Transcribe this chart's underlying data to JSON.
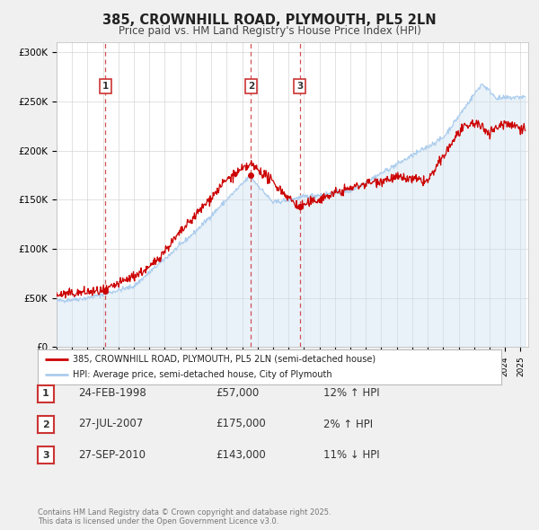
{
  "title": "385, CROWNHILL ROAD, PLYMOUTH, PL5 2LN",
  "subtitle": "Price paid vs. HM Land Registry's House Price Index (HPI)",
  "hpi_label": "HPI: Average price, semi-detached house, City of Plymouth",
  "property_label": "385, CROWNHILL ROAD, PLYMOUTH, PL5 2LN (semi-detached house)",
  "footnote": "Contains HM Land Registry data © Crown copyright and database right 2025.\nThis data is licensed under the Open Government Licence v3.0.",
  "transactions": [
    {
      "num": 1,
      "date": "24-FEB-1998",
      "price": 57000,
      "hpi_diff": "12% ↑ HPI",
      "year": 1998.14
    },
    {
      "num": 2,
      "date": "27-JUL-2007",
      "price": 175000,
      "hpi_diff": "2% ↑ HPI",
      "year": 2007.57
    },
    {
      "num": 3,
      "date": "27-SEP-2010",
      "price": 143000,
      "hpi_diff": "11% ↓ HPI",
      "year": 2010.74
    }
  ],
  "property_color": "#cc0000",
  "hpi_color": "#aaccee",
  "hpi_fill_color": "#cce0f0",
  "vline_color": "#cc3333",
  "background_color": "#f0f0f0",
  "plot_bg_color": "#ffffff",
  "ylim": [
    0,
    310000
  ],
  "xlim_start": 1995,
  "xlim_end": 2025.5,
  "yticks": [
    0,
    50000,
    100000,
    150000,
    200000,
    250000,
    300000
  ],
  "ytick_labels": [
    "£0",
    "£50K",
    "£100K",
    "£150K",
    "£200K",
    "£250K",
    "£300K"
  ]
}
